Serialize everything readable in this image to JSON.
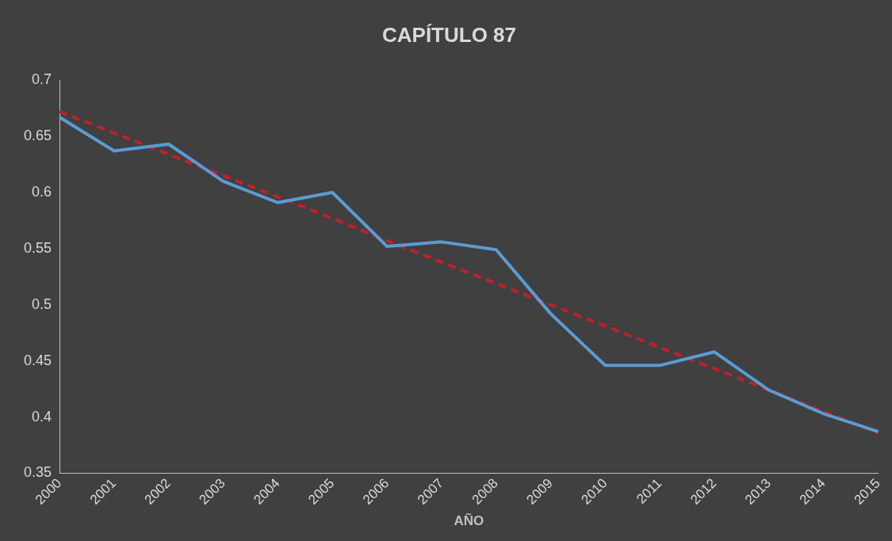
{
  "chart_data": {
    "type": "line",
    "title": "CAPÍTULO 87",
    "xlabel": "AÑO",
    "categories": [
      "2000",
      "2001",
      "2002",
      "2003",
      "2004",
      "2005",
      "2006",
      "2007",
      "2008",
      "2009",
      "2010",
      "2011",
      "2012",
      "2013",
      "2014",
      "2015"
    ],
    "series": [
      {
        "color": "#5b9bd5",
        "line_style": "solid",
        "values": [
          0.667,
          0.637,
          0.643,
          0.61,
          0.591,
          0.6,
          0.552,
          0.556,
          0.549,
          0.492,
          0.446,
          0.446,
          0.458,
          0.424,
          0.403,
          0.387
        ]
      },
      {
        "color": "#c0202b",
        "line_style": "dashed",
        "values": [
          0.672,
          0.653,
          0.634,
          0.615,
          0.596,
          0.577,
          0.557,
          0.538,
          0.519,
          0.5,
          0.481,
          0.462,
          0.443,
          0.424,
          0.405,
          0.386
        ]
      }
    ],
    "ylim": [
      0.35,
      0.7
    ],
    "yticks": [
      0.35,
      0.4,
      0.45,
      0.5,
      0.55,
      0.6,
      0.65,
      0.7
    ],
    "grid": false,
    "legend": false,
    "marker": "none"
  }
}
